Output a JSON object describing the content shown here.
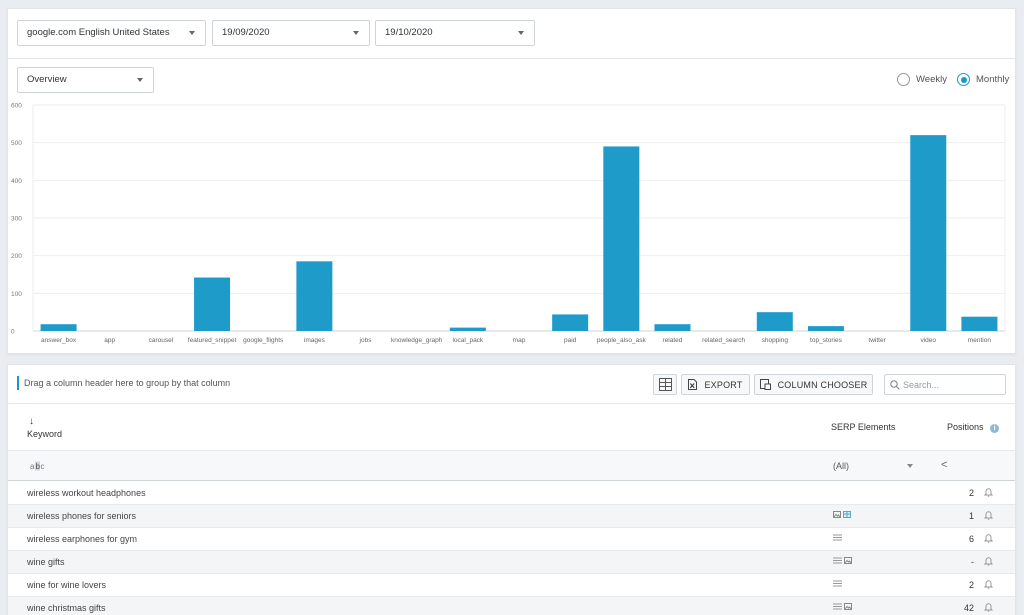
{
  "filters": {
    "search_engine": "google.com English United States",
    "date_from": "19/09/2020",
    "date_to": "19/10/2020",
    "view": "Overview"
  },
  "period": {
    "weekly_label": "Weekly",
    "monthly_label": "Monthly",
    "selected": "Monthly"
  },
  "colors": {
    "accent": "#1b98c7",
    "bar": "#1f9bca"
  },
  "chart_data": {
    "type": "bar",
    "categories": [
      "answer_box",
      "app",
      "carousel",
      "featured_snippet",
      "google_flights",
      "images",
      "jobs",
      "knowledge_graph",
      "local_pack",
      "map",
      "paid",
      "people_also_ask",
      "related",
      "related_search",
      "shopping",
      "top_stories",
      "twitter",
      "video",
      "mention"
    ],
    "values": [
      18,
      0,
      0,
      142,
      0,
      185,
      0,
      0,
      9,
      0,
      44,
      490,
      18,
      0,
      50,
      13,
      0,
      520,
      38
    ],
    "yticks": [
      0,
      100,
      200,
      300,
      400,
      500,
      600
    ],
    "ylim": [
      0,
      600
    ],
    "grid": true
  },
  "grid": {
    "group_panel_text": "Drag a column header here to group by that column",
    "export_label": "EXPORT",
    "column_chooser_label": "COLUMN CHOOSER",
    "search_placeholder": "Search...",
    "sort_arrow": "↓",
    "columns": {
      "keyword": "Keyword",
      "serp": "SERP Elements",
      "positions": "Positions"
    },
    "filter_row": {
      "keyword_icon": "abc-filter-icon",
      "serp_value": "(All)",
      "positions_op": "<"
    },
    "rows": [
      {
        "keyword": "wireless workout headphones",
        "serp": [],
        "position": "2"
      },
      {
        "keyword": "wireless phones for seniors",
        "serp": [
          "image-icon",
          "table-icon"
        ],
        "position": "1"
      },
      {
        "keyword": "wireless earphones for gym",
        "serp": [
          "list-icon"
        ],
        "position": "6"
      },
      {
        "keyword": "wine gifts",
        "serp": [
          "list-icon",
          "image-icon"
        ],
        "position": "-"
      },
      {
        "keyword": "wine for wine lovers",
        "serp": [
          "list-icon"
        ],
        "position": "2"
      },
      {
        "keyword": "wine christmas gifts",
        "serp": [
          "list-icon",
          "image-icon"
        ],
        "position": "42"
      }
    ]
  }
}
